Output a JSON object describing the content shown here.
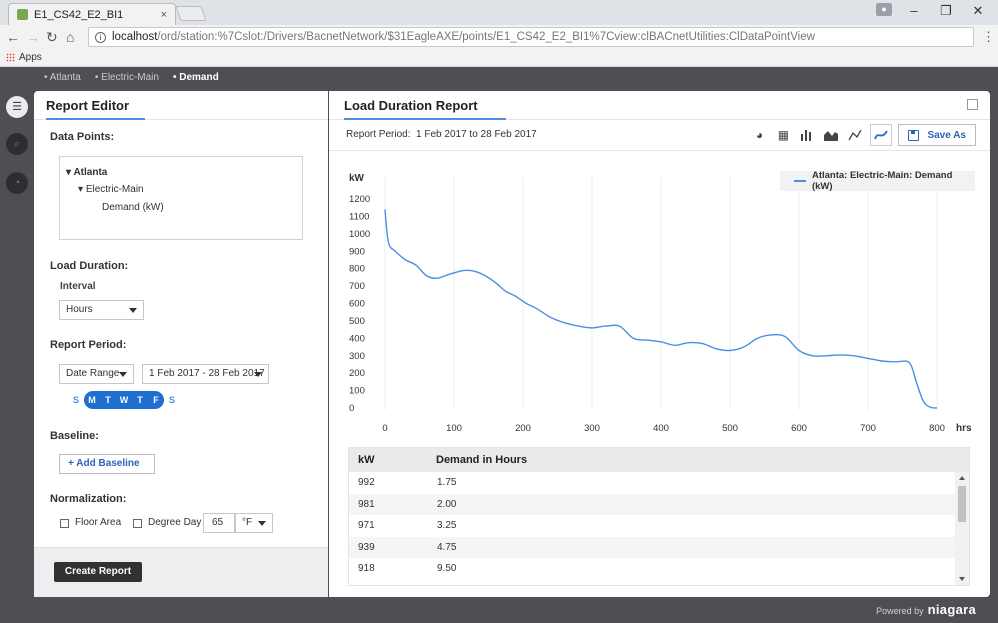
{
  "browser": {
    "tab_title": "E1_CS42_E2_BI1",
    "tab_close": "×",
    "window_controls": [
      "–",
      "❐",
      "✕"
    ],
    "url_host": "localhost",
    "url_path": "/ord/station:%7Cslot:/Drivers/BacnetNetwork/$31EagleAXE/points/E1_CS42_E2_BI1%7Cview:clBACnetUtilities:ClDataPointView",
    "bookmarks_label": "Apps",
    "menu": "⋮"
  },
  "breadcrumb": [
    "Atlanta",
    "Electric-Main",
    "Demand"
  ],
  "editor": {
    "title": "Report Editor",
    "data_points_label": "Data Points:",
    "tree": [
      "Atlanta",
      "Electric-Main",
      "Demand (kW)"
    ],
    "load_duration_label": "Load Duration:",
    "interval_label": "Interval",
    "interval_value": "Hours",
    "report_period_label": "Report Period:",
    "range_type": "Date Range",
    "range_value": "1 Feb 2017 - 28 Feb 2017",
    "days": [
      {
        "letter": "S",
        "on": false
      },
      {
        "letter": "M",
        "on": true
      },
      {
        "letter": "T",
        "on": true
      },
      {
        "letter": "W",
        "on": true
      },
      {
        "letter": "T",
        "on": true
      },
      {
        "letter": "F",
        "on": true
      },
      {
        "letter": "S",
        "on": false
      }
    ],
    "baseline_label": "Baseline:",
    "add_baseline": "Add Baseline",
    "normalization_label": "Normalization:",
    "floor_area": "Floor Area",
    "degree_day": "Degree Day",
    "degree_value": "65",
    "degree_unit": "°F",
    "create_report": "Create Report"
  },
  "report": {
    "title": "Load Duration Report",
    "period_label": "Report Period:",
    "period_value": "1 Feb 2017 to 28 Feb 2017",
    "save_as": "Save As",
    "table": {
      "headers": [
        "kW",
        "Demand in Hours"
      ],
      "rows": [
        [
          "992",
          "1.75"
        ],
        [
          "981",
          "2.00"
        ],
        [
          "971",
          "3.25"
        ],
        [
          "939",
          "4.75"
        ],
        [
          "918",
          "9.50"
        ]
      ]
    }
  },
  "chart_data": {
    "type": "line",
    "xlabel": "hrs",
    "ylabel": "kW",
    "xlim": [
      0,
      800
    ],
    "ylim": [
      0,
      1200
    ],
    "xticks": [
      0,
      100,
      200,
      300,
      400,
      500,
      600,
      700,
      800
    ],
    "yticks": [
      0,
      100,
      200,
      300,
      400,
      500,
      600,
      700,
      800,
      900,
      1000,
      1100,
      1200
    ],
    "grid": "vertical",
    "legend_position": "top-right",
    "series": [
      {
        "name": "Atlanta: Electric-Main: Demand (kW)",
        "color": "#4a90e2",
        "x": [
          0,
          5,
          15,
          30,
          45,
          60,
          75,
          95,
          115,
          130,
          145,
          160,
          175,
          190,
          205,
          220,
          240,
          260,
          280,
          300,
          320,
          340,
          360,
          380,
          400,
          420,
          440,
          460,
          480,
          500,
          520,
          540,
          560,
          580,
          600,
          620,
          640,
          660,
          680,
          700,
          720,
          740,
          760,
          770,
          780,
          790,
          800
        ],
        "y": [
          1140,
          950,
          900,
          850,
          820,
          760,
          745,
          770,
          790,
          785,
          760,
          720,
          670,
          640,
          600,
          570,
          520,
          490,
          470,
          460,
          470,
          470,
          400,
          390,
          380,
          360,
          375,
          370,
          340,
          330,
          350,
          400,
          420,
          410,
          330,
          300,
          300,
          305,
          300,
          285,
          270,
          265,
          260,
          150,
          40,
          5,
          0
        ]
      }
    ]
  },
  "footer": {
    "powered_by": "Powered by",
    "brand": "niagara"
  },
  "colors": {
    "accent": "#4a90e2",
    "day_selected": "#1f6fd1",
    "dark_button": "#2f3133",
    "frame": "#4d4f53"
  }
}
